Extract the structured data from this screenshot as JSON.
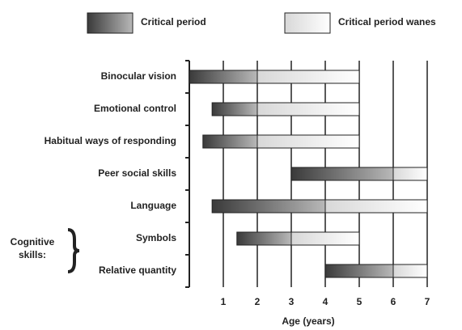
{
  "chart_data": {
    "type": "range-bar",
    "categories": [
      "Binocular vision",
      "Emotional control",
      "Habitual ways of responding",
      "Peer social skills",
      "Language",
      "Symbols",
      "Relative quantity"
    ],
    "series": [
      {
        "name": "Critical period",
        "color": [
          "#3a3a3a",
          "#b8b8b8"
        ],
        "values": [
          [
            0,
            2
          ],
          [
            0.67,
            2
          ],
          [
            0.4,
            2
          ],
          [
            3,
            6
          ],
          [
            0.67,
            4
          ],
          [
            1.4,
            3
          ],
          [
            4,
            6
          ]
        ]
      },
      {
        "name": "Critical period wanes",
        "color": [
          "#d8d8d8",
          "#ffffff"
        ],
        "values": [
          [
            2,
            5
          ],
          [
            2,
            5
          ],
          [
            2,
            5
          ],
          [
            6,
            7
          ],
          [
            4,
            7
          ],
          [
            3,
            5
          ],
          [
            6,
            7
          ]
        ]
      }
    ],
    "annotation": [
      "Cognitive",
      "skills:"
    ],
    "xlabel": "Age (years)",
    "xlim": [
      0,
      7
    ],
    "xticks": [
      1,
      2,
      3,
      4,
      5,
      6,
      7
    ],
    "grid": true
  }
}
